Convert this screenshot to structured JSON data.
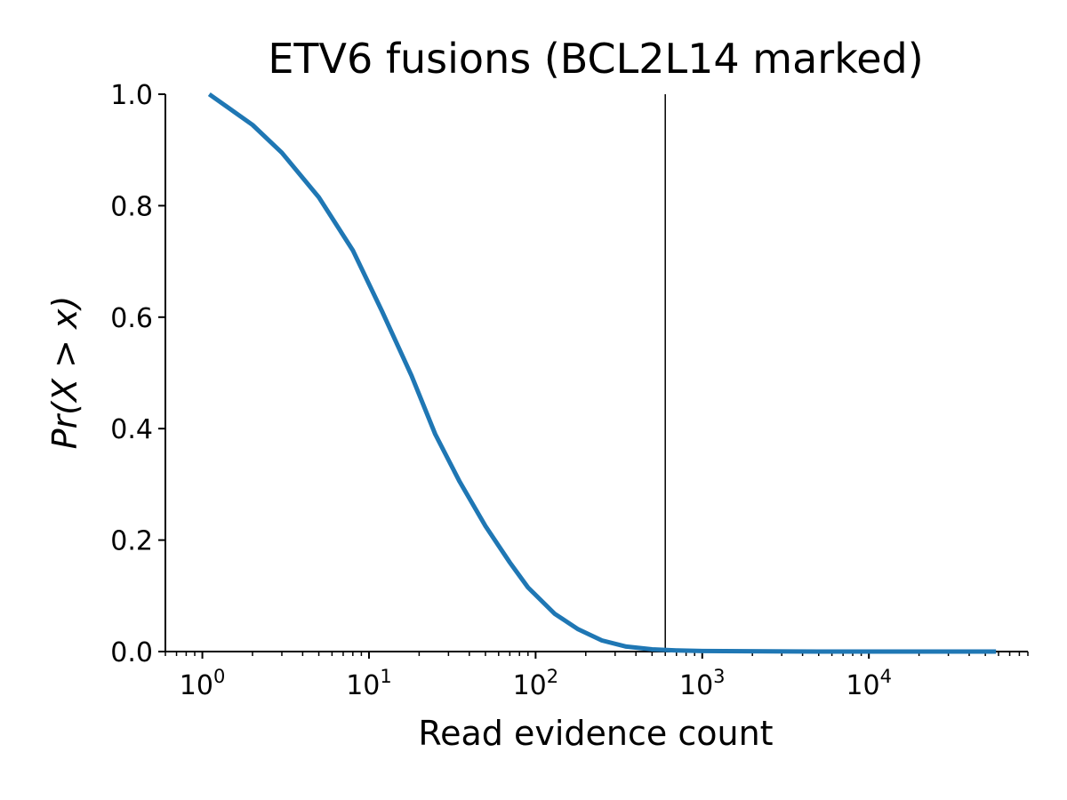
{
  "chart_data": {
    "type": "line",
    "title": "ETV6 fusions (BCL2L14 marked)",
    "xlabel": "Read evidence count",
    "ylabel": "Pr(X > x)",
    "x_scale": "log",
    "xlim": [
      0.6,
      90000
    ],
    "ylim": [
      0,
      1
    ],
    "x_tick_labels": [
      {
        "value": 1,
        "base": "10",
        "exp": "0"
      },
      {
        "value": 10,
        "base": "10",
        "exp": "1"
      },
      {
        "value": 100,
        "base": "10",
        "exp": "2"
      },
      {
        "value": 1000,
        "base": "10",
        "exp": "3"
      },
      {
        "value": 10000,
        "base": "10",
        "exp": "4"
      }
    ],
    "y_ticks": [
      0.0,
      0.2,
      0.4,
      0.6,
      0.8,
      1.0
    ],
    "y_tick_labels": [
      "0.0",
      "0.2",
      "0.4",
      "0.6",
      "0.8",
      "1.0"
    ],
    "grid": false,
    "series": [
      {
        "color": "#1f77b4",
        "x": [
          1.1,
          2,
          3,
          5,
          8,
          12,
          18,
          25,
          35,
          50,
          70,
          90,
          130,
          180,
          250,
          350,
          500,
          700,
          1000,
          5000,
          20000,
          58000
        ],
        "y": [
          1.0,
          0.945,
          0.895,
          0.815,
          0.72,
          0.61,
          0.495,
          0.39,
          0.305,
          0.225,
          0.16,
          0.115,
          0.068,
          0.04,
          0.02,
          0.009,
          0.004,
          0.002,
          0.001,
          0.0,
          0.0,
          0.0
        ]
      }
    ],
    "marker": {
      "x": 600,
      "label": "BCL2L14",
      "color": "#000000"
    }
  }
}
